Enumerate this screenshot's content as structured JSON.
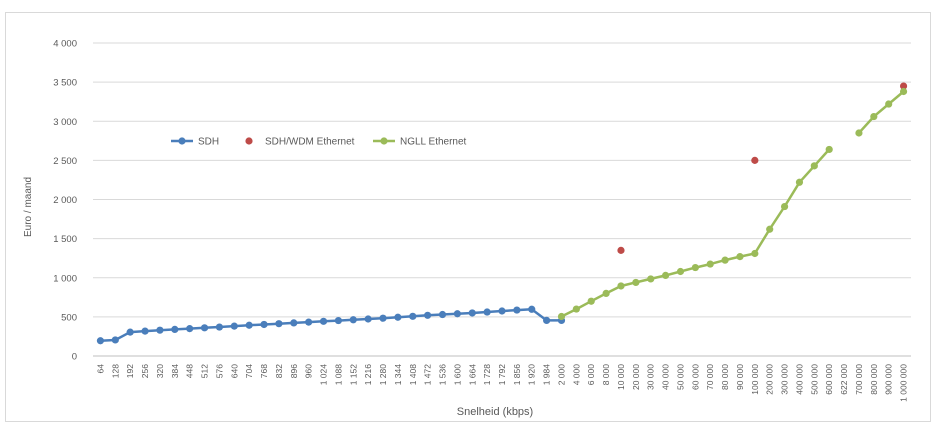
{
  "chart_data": {
    "type": "line",
    "title": "",
    "xlabel": "Snelheid (kbps)",
    "ylabel": "Euro / maand",
    "ylim": [
      0,
      4000
    ],
    "yticks": [
      "0",
      "500",
      "1 000",
      "1 500",
      "2 000",
      "2 500",
      "3 000",
      "3 500",
      "4 000"
    ],
    "ytick_values": [
      0,
      500,
      1000,
      1500,
      2000,
      2500,
      3000,
      3500,
      4000
    ],
    "grid": true,
    "legend_position": "left-middle",
    "categories": [
      "64",
      "128",
      "192",
      "256",
      "320",
      "384",
      "448",
      "512",
      "576",
      "640",
      "704",
      "768",
      "832",
      "896",
      "960",
      "1 024",
      "1 088",
      "1 152",
      "1 216",
      "1 280",
      "1 344",
      "1 408",
      "1 472",
      "1 536",
      "1 600",
      "1 664",
      "1 728",
      "1 792",
      "1 856",
      "1 920",
      "1 984",
      "2 000",
      "4 000",
      "6 000",
      "8 000",
      "10 000",
      "20 000",
      "30 000",
      "40 000",
      "50 000",
      "60 000",
      "70 000",
      "80 000",
      "90 000",
      "100 000",
      "200 000",
      "300 000",
      "400 000",
      "500 000",
      "600 000",
      "622 000",
      "700 000",
      "800 000",
      "900 000",
      "1 000 000"
    ],
    "series": [
      {
        "name": "SDH",
        "color": "#4a7ebb",
        "marker": "circle",
        "line": true,
        "values": [
          195,
          205,
          305,
          318,
          330,
          340,
          350,
          360,
          370,
          382,
          393,
          403,
          413,
          423,
          433,
          443,
          453,
          463,
          473,
          483,
          495,
          507,
          520,
          530,
          540,
          550,
          562,
          575,
          587,
          597,
          455,
          455,
          null,
          null,
          null,
          null,
          null,
          null,
          null,
          null,
          null,
          null,
          null,
          null,
          null,
          null,
          null,
          null,
          null,
          null,
          null,
          null,
          null,
          null,
          null
        ]
      },
      {
        "name": "SDH/WDM Ethernet",
        "color": "#be4b48",
        "marker": "circle",
        "line": false,
        "values": [
          null,
          null,
          null,
          null,
          null,
          null,
          null,
          null,
          null,
          null,
          null,
          null,
          null,
          null,
          null,
          null,
          null,
          null,
          null,
          null,
          null,
          null,
          null,
          null,
          null,
          null,
          null,
          null,
          null,
          null,
          null,
          null,
          null,
          null,
          null,
          1350,
          null,
          null,
          null,
          null,
          null,
          null,
          null,
          null,
          2500,
          null,
          null,
          null,
          null,
          null,
          null,
          null,
          null,
          null,
          3450
        ]
      },
      {
        "name": "NGLL Ethernet",
        "color": "#9bbb59",
        "marker": "circle",
        "line": true,
        "values": [
          null,
          null,
          null,
          null,
          null,
          null,
          null,
          null,
          null,
          null,
          null,
          null,
          null,
          null,
          null,
          null,
          null,
          null,
          null,
          null,
          null,
          null,
          null,
          null,
          null,
          null,
          null,
          null,
          null,
          null,
          null,
          505,
          600,
          700,
          800,
          895,
          940,
          985,
          1030,
          1080,
          1130,
          1175,
          1225,
          1270,
          1310,
          1620,
          1910,
          2220,
          2430,
          2640,
          null,
          2850,
          3060,
          3220,
          3380
        ]
      }
    ]
  }
}
